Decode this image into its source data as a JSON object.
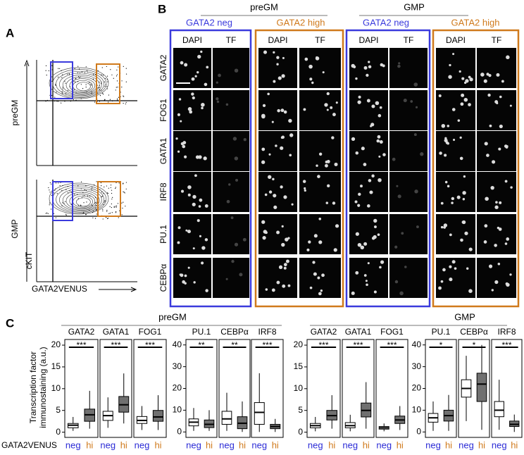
{
  "panel_a": {
    "label": "A",
    "plots": [
      "preGM",
      "GMP"
    ],
    "y_axis": "cKIT",
    "x_axis": "GATA2VENUS"
  },
  "panel_b": {
    "label": "B",
    "groups": [
      {
        "title": "preGM",
        "subgroups": [
          "GATA2 neg",
          "GATA2 high"
        ]
      },
      {
        "title": "GMP",
        "subgroups": [
          "GATA2 neg",
          "GATA2 high"
        ]
      }
    ],
    "columns": [
      "DAPI",
      "TF"
    ],
    "rows": [
      "GATA2",
      "FOG1",
      "GATA1",
      "IRF8",
      "PU.1",
      "CEBPα"
    ]
  },
  "panel_c": {
    "label": "C",
    "groups": [
      "preGM",
      "GMP"
    ],
    "y_label_lines": [
      "Transcription factor",
      "immunostaining (a.u.)"
    ],
    "x_row_label": "GATA2VENUS"
  },
  "chart_data": [
    {
      "type": "box",
      "title": "GATA2",
      "categories": [
        "neg",
        "hi"
      ],
      "category_colors": [
        "#2b2bd6",
        "#d07a1c"
      ],
      "box_fills": [
        "#ffffff",
        "#707070"
      ],
      "boxes": [
        {
          "min": 0.3,
          "q1": 1.0,
          "median": 1.6,
          "q3": 2.0,
          "max": 3.5
        },
        {
          "min": 0.8,
          "q1": 2.5,
          "median": 4.0,
          "q3": 5.3,
          "max": 9.5
        }
      ],
      "significance": "***",
      "ylim": [
        -1.2,
        21.3
      ],
      "yticks": [
        0,
        5,
        10,
        15,
        20
      ]
    },
    {
      "type": "box",
      "title": "GATA1",
      "categories": [
        "neg",
        "hi"
      ],
      "category_colors": [
        "#2b2bd6",
        "#d07a1c"
      ],
      "box_fills": [
        "#ffffff",
        "#707070"
      ],
      "boxes": [
        {
          "min": 1,
          "q1": 2.7,
          "median": 3.8,
          "q3": 4.8,
          "max": 8
        },
        {
          "min": 2,
          "q1": 4.6,
          "median": 6.3,
          "q3": 8.2,
          "max": 13.5
        }
      ],
      "significance": "***",
      "ylim": [
        -1.2,
        21.3
      ]
    },
    {
      "type": "box",
      "title": "FOG1",
      "categories": [
        "neg",
        "hi"
      ],
      "category_colors": [
        "#2b2bd6",
        "#d07a1c"
      ],
      "box_fills": [
        "#ffffff",
        "#707070"
      ],
      "boxes": [
        {
          "min": 0.5,
          "q1": 2.0,
          "median": 2.7,
          "q3": 3.6,
          "max": 6
        },
        {
          "min": 0.5,
          "q1": 2.5,
          "median": 3.5,
          "q3": 5.0,
          "max": 8.5
        }
      ],
      "significance": "***",
      "ylim": [
        -1.2,
        21.3
      ]
    },
    {
      "type": "box",
      "title": "PU.1",
      "categories": [
        "neg",
        "hi"
      ],
      "category_colors": [
        "#2b2bd6",
        "#d07a1c"
      ],
      "box_fills": [
        "#ffffff",
        "#707070"
      ],
      "boxes": [
        {
          "min": 0.5,
          "q1": 2.8,
          "median": 4.5,
          "q3": 6,
          "max": 11
        },
        {
          "min": 0.5,
          "q1": 2,
          "median": 3.5,
          "q3": 5.5,
          "max": 10
        }
      ],
      "significance": "**",
      "ylim": [
        -2.5,
        42.5
      ],
      "yticks": [
        0,
        10,
        20,
        30,
        40
      ]
    },
    {
      "type": "box",
      "title": "CEBPα",
      "categories": [
        "neg",
        "hi"
      ],
      "category_colors": [
        "#2b2bd6",
        "#d07a1c"
      ],
      "box_fills": [
        "#ffffff",
        "#707070"
      ],
      "boxes": [
        {
          "min": 0.5,
          "q1": 3.5,
          "median": 6,
          "q3": 9.5,
          "max": 18
        },
        {
          "min": 0,
          "q1": 1.5,
          "median": 4,
          "q3": 7,
          "max": 14
        }
      ],
      "significance": "**",
      "ylim": [
        -2.5,
        42.5
      ]
    },
    {
      "type": "box",
      "title": "IRF8",
      "categories": [
        "neg",
        "hi"
      ],
      "category_colors": [
        "#2b2bd6",
        "#d07a1c"
      ],
      "box_fills": [
        "#ffffff",
        "#707070"
      ],
      "boxes": [
        {
          "min": 0,
          "q1": 3.5,
          "median": 9,
          "q3": 13.5,
          "max": 27
        },
        {
          "min": 0,
          "q1": 1.5,
          "median": 2.5,
          "q3": 3.5,
          "max": 6
        }
      ],
      "significance": "***",
      "ylim": [
        -2.5,
        42.5
      ]
    },
    {
      "type": "box",
      "title": "GATA2",
      "categories": [
        "neg",
        "hi"
      ],
      "category_colors": [
        "#2b2bd6",
        "#d07a1c"
      ],
      "box_fills": [
        "#ffffff",
        "#707070"
      ],
      "boxes": [
        {
          "min": 0.2,
          "q1": 1.0,
          "median": 1.5,
          "q3": 2.0,
          "max": 3.5
        },
        {
          "min": 0.8,
          "q1": 2.8,
          "median": 3.8,
          "q3": 5,
          "max": 8.5
        }
      ],
      "significance": "***",
      "ylim": [
        -1.2,
        21.3
      ],
      "yticks": [
        0,
        5,
        10,
        15,
        20
      ]
    },
    {
      "type": "box",
      "title": "GATA1",
      "categories": [
        "neg",
        "hi"
      ],
      "category_colors": [
        "#2b2bd6",
        "#d07a1c"
      ],
      "box_fills": [
        "#ffffff",
        "#707070"
      ],
      "boxes": [
        {
          "min": 0.2,
          "q1": 1.0,
          "median": 1.5,
          "q3": 2.2,
          "max": 4
        },
        {
          "min": 0.8,
          "q1": 3.5,
          "median": 5,
          "q3": 6.7,
          "max": 11.5
        }
      ],
      "significance": "***",
      "ylim": [
        -1.2,
        21.3
      ]
    },
    {
      "type": "box",
      "title": "FOG1",
      "categories": [
        "neg",
        "hi"
      ],
      "category_colors": [
        "#2b2bd6",
        "#d07a1c"
      ],
      "box_fills": [
        "#ffffff",
        "#707070"
      ],
      "boxes": [
        {
          "min": 0.2,
          "q1": 0.7,
          "median": 1.0,
          "q3": 1.3,
          "max": 2
        },
        {
          "min": 0.5,
          "q1": 2,
          "median": 2.8,
          "q3": 3.7,
          "max": 6
        }
      ],
      "significance": "***",
      "ylim": [
        -1.2,
        21.3
      ]
    },
    {
      "type": "box",
      "title": "PU.1",
      "categories": [
        "neg",
        "hi"
      ],
      "category_colors": [
        "#2b2bd6",
        "#d07a1c"
      ],
      "box_fills": [
        "#ffffff",
        "#707070"
      ],
      "boxes": [
        {
          "min": 0.5,
          "q1": 4.5,
          "median": 6.5,
          "q3": 8.5,
          "max": 14
        },
        {
          "min": 0.5,
          "q1": 5,
          "median": 7.5,
          "q3": 10,
          "max": 17
        }
      ],
      "significance": "*",
      "ylim": [
        -2.5,
        42.5
      ],
      "yticks": [
        0,
        10,
        20,
        30,
        40
      ]
    },
    {
      "type": "box",
      "title": "CEBPα",
      "categories": [
        "neg",
        "hi"
      ],
      "category_colors": [
        "#2b2bd6",
        "#d07a1c"
      ],
      "box_fills": [
        "#ffffff",
        "#707070"
      ],
      "boxes": [
        {
          "min": 5,
          "q1": 16,
          "median": 20,
          "q3": 24,
          "max": 35
        },
        {
          "min": 1,
          "q1": 14,
          "median": 22,
          "q3": 27,
          "max": 40
        }
      ],
      "significance": "*",
      "ylim": [
        -2.5,
        42.5
      ]
    },
    {
      "type": "box",
      "title": "IRF8",
      "categories": [
        "neg",
        "hi"
      ],
      "category_colors": [
        "#2b2bd6",
        "#d07a1c"
      ],
      "box_fills": [
        "#ffffff",
        "#707070"
      ],
      "boxes": [
        {
          "min": 1,
          "q1": 7,
          "median": 10,
          "q3": 14,
          "max": 24
        },
        {
          "min": 0,
          "q1": 2.5,
          "median": 3.5,
          "q3": 5,
          "max": 8
        }
      ],
      "significance": "***",
      "ylim": [
        -2.5,
        42.5
      ]
    }
  ]
}
